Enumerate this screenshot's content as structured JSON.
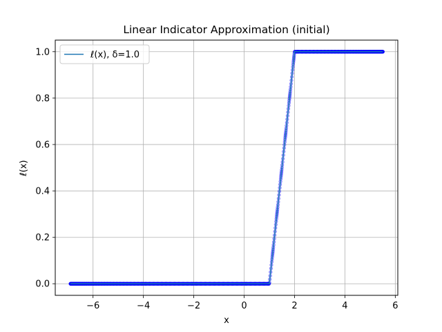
{
  "chart_data": {
    "type": "scatter",
    "title": "Linear Indicator Approximation (initial)",
    "xlabel": "x",
    "ylabel": "ℓ(x)",
    "xlim": [
      -7.5,
      6.1
    ],
    "ylim": [
      -0.05,
      1.05
    ],
    "xticks": [
      -6,
      -4,
      -2,
      0,
      2,
      4,
      6
    ],
    "yticks": [
      0.0,
      0.2,
      0.4,
      0.6,
      0.8,
      1.0
    ],
    "xtick_labels": [
      "−6",
      "−4",
      "−2",
      "0",
      "2",
      "4",
      "6"
    ],
    "ytick_labels": [
      "0.0",
      "0.2",
      "0.4",
      "0.6",
      "0.8",
      "1.0"
    ],
    "grid": true,
    "legend_position": "top-left",
    "series": [
      {
        "name": "ℓ(x), δ=1.0",
        "kind": "line",
        "color": "#1f77b4",
        "x": [
          -6.9,
          1.0,
          2.0,
          5.5
        ],
        "y": [
          0.0,
          0.0,
          1.0,
          1.0
        ]
      },
      {
        "kind": "scatter",
        "color": "#0000ff",
        "x_range": [
          -6.9,
          5.5
        ],
        "delta": 1.0,
        "breakpoints": [
          1.0,
          2.0
        ]
      }
    ]
  }
}
